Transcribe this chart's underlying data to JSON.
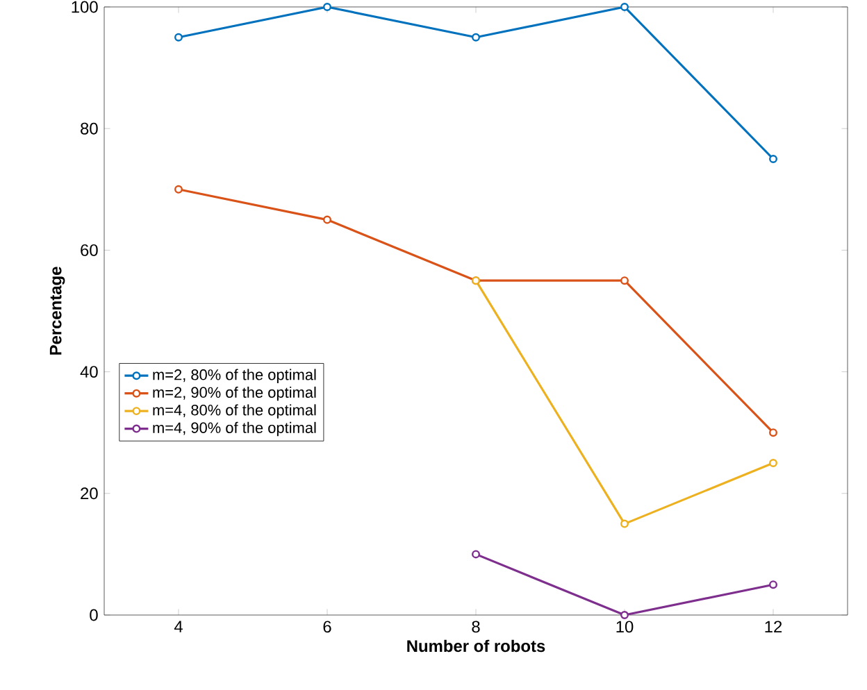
{
  "chart_data": {
    "type": "line",
    "xlabel": "Number of robots",
    "ylabel": "Percentage",
    "xlim": [
      3,
      13
    ],
    "xticks": [
      4,
      6,
      8,
      10,
      12
    ],
    "ylim": [
      0,
      100
    ],
    "yticks": [
      0,
      20,
      40,
      60,
      80,
      100
    ],
    "marker": "circle",
    "line_style": "solid",
    "legend": "left",
    "grid": false,
    "series": [
      {
        "name": "m=2, 80% of the optimal",
        "color": "#0072bd",
        "x": [
          4,
          6,
          8,
          10,
          12
        ],
        "values": [
          95,
          100,
          95,
          100,
          75
        ]
      },
      {
        "name": "m=2, 90% of the optimal",
        "color": "#d95319",
        "x": [
          4,
          6,
          8,
          10,
          12
        ],
        "values": [
          70,
          65,
          55,
          55,
          30
        ]
      },
      {
        "name": "m=4, 80% of the optimal",
        "color": "#edb120",
        "x": [
          8,
          10,
          12
        ],
        "values": [
          55,
          15,
          25
        ]
      },
      {
        "name": "m=4, 90% of the optimal",
        "color": "#7e2f8e",
        "x": [
          8,
          10,
          12
        ],
        "values": [
          10,
          0,
          5
        ]
      }
    ]
  }
}
